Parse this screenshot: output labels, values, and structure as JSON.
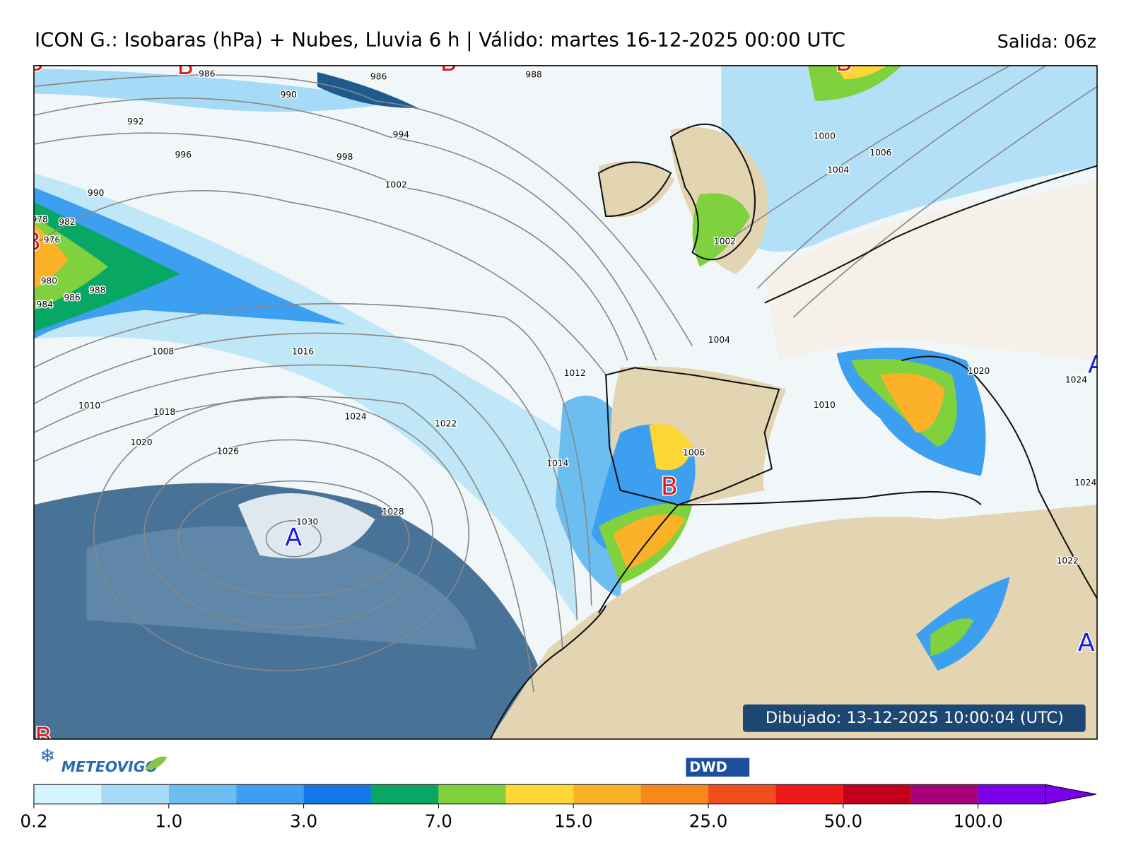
{
  "header": {
    "title": "ICON G.: Isobaras (hPa) + Nubes, Lluvia 6 h | Válido: martes 16-12-2025 00:00 UTC",
    "run": "Salida: 06z"
  },
  "map": {
    "isobar_labels": [
      986,
      986,
      988,
      990,
      992,
      994,
      996,
      998,
      1002,
      990,
      982,
      976,
      978,
      980,
      984,
      986,
      988,
      1008,
      1016,
      1010,
      1018,
      1020,
      1024,
      1022,
      1026,
      1030,
      1028,
      1012,
      1014,
      1006,
      1004,
      1002,
      1000,
      1004,
      1006,
      1010,
      1020,
      1024,
      1024,
      1022
    ],
    "pressure_centers": [
      "B",
      "B",
      "B",
      "B",
      "B",
      "B",
      "B",
      "A",
      "A",
      "A"
    ],
    "drawn": "Dibujado: 13-12-2025 10:00:04 (UTC)"
  },
  "footer": {
    "logo": "METEOVIGO",
    "agency": "DWD"
  },
  "colorbar": {
    "colors": [
      "#d4f4ff",
      "#a5dbf6",
      "#6dbef0",
      "#3c9ff0",
      "#1378e6",
      "#08a864",
      "#7fd23e",
      "#fdd736",
      "#fbb128",
      "#f6881e",
      "#f24d1c",
      "#ee1a1a",
      "#c3001c",
      "#a70078",
      "#7b00e8"
    ],
    "ticks": [
      0.2,
      {
        "value": 1,
        "label": "1.0"
      },
      {
        "value": 3,
        "label": "3.0"
      },
      {
        "value": 7,
        "label": "7.0"
      },
      {
        "value": 15,
        "label": "15.0"
      },
      {
        "value": 25,
        "label": "25.0"
      },
      {
        "value": 50,
        "label": "50.0"
      },
      {
        "value": 100,
        "label": "100.0"
      }
    ]
  }
}
